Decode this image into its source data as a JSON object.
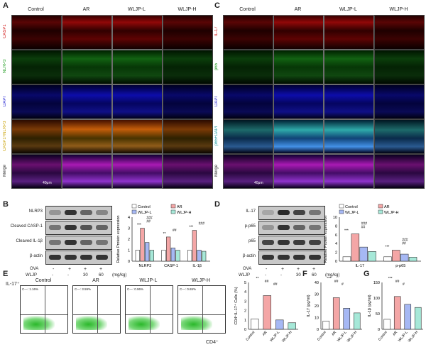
{
  "panels": {
    "A": {
      "label": "A",
      "cols": [
        "Control",
        "AR",
        "WLJP-L",
        "WLJP-H"
      ],
      "rows": [
        "CASP1",
        "NLRP3",
        "DAPI",
        "CASP1+NLRP3",
        "Merge"
      ],
      "scale": "40μm"
    },
    "C": {
      "label": "C",
      "cols": [
        "Control",
        "AR",
        "WLJP-L",
        "WLJP-H"
      ],
      "rows": [
        "IL-17",
        "p65",
        "DAPI",
        "p65+DAPI",
        "Merge"
      ],
      "scale": "40μm"
    },
    "B": {
      "label": "B",
      "blots": [
        "NLRP3",
        "Cleaved CASP-1",
        "Cleaved IL-1β",
        "β-actin"
      ],
      "ova": [
        "-",
        "+",
        "+",
        "+"
      ],
      "wljp": [
        "-",
        "-",
        "30",
        "60"
      ],
      "ova_label": "OVA",
      "wljp_label": "WLJP",
      "unit": "(mg/kg)"
    },
    "D": {
      "label": "D",
      "blots": [
        "IL-17",
        "p-p65",
        "p65",
        "β-actin"
      ],
      "ova": [
        "-",
        "+",
        "+",
        "+"
      ],
      "wljp": [
        "-",
        "-",
        "30",
        "60"
      ],
      "ova_label": "OVA",
      "wljp_label": "WLJP",
      "unit": "(mg/kg)"
    },
    "E": {
      "label": "E",
      "y": "IL-17⁺",
      "x": "CD4⁺",
      "plots": [
        "Control",
        "AR",
        "WLJP-L",
        "WLJP-H"
      ],
      "gates": [
        "C—: 1.16%",
        "C—: 3.59%",
        "C—: 0.96%",
        "C—: 0.65%"
      ]
    },
    "F": {
      "label": "F"
    },
    "G": {
      "label": "G"
    }
  },
  "legend": {
    "items": [
      "Control",
      "AR",
      "WLJP-L",
      "WLJP-H"
    ],
    "colors": [
      "#ffffff",
      "#f4a6a6",
      "#a6b8f4",
      "#a6e8d8"
    ]
  },
  "chart_data": [
    {
      "type": "bar",
      "id": "B",
      "ylabel": "Relative Protein expression",
      "categories": [
        "NLRP3",
        "CASP-1",
        "IL-1β"
      ],
      "ylim": [
        0,
        4
      ],
      "yticks": [
        "0",
        "1",
        "2",
        "3",
        "4"
      ],
      "series": [
        {
          "name": "Control",
          "values": [
            1.0,
            1.0,
            1.0
          ]
        },
        {
          "name": "AR",
          "values": [
            3.0,
            2.2,
            2.8
          ]
        },
        {
          "name": "WLJP-L",
          "values": [
            1.7,
            1.2,
            1.0
          ]
        },
        {
          "name": "WLJP-H",
          "values": [
            1.0,
            1.0,
            0.9
          ]
        }
      ],
      "sig": [
        {
          "text": "***",
          "cat": 0
        },
        {
          "text": "##",
          "cat": 0
        },
        {
          "text": "###",
          "cat": 0
        },
        {
          "text": "**",
          "cat": 1
        },
        {
          "text": "##",
          "cat": 1
        },
        {
          "text": "***",
          "cat": 2
        },
        {
          "text": "###",
          "cat": 2
        }
      ]
    },
    {
      "type": "bar",
      "id": "D",
      "ylabel": "Relative Protein expression",
      "categories": [
        "IL-17",
        "p-p65"
      ],
      "ylim": [
        0,
        10
      ],
      "yticks": [
        "0",
        "2",
        "4",
        "6",
        "8",
        "10"
      ],
      "series": [
        {
          "name": "Control",
          "values": [
            1.0,
            1.0
          ]
        },
        {
          "name": "AR",
          "values": [
            6.2,
            2.5
          ]
        },
        {
          "name": "WLJP-L",
          "values": [
            3.2,
            1.6
          ]
        },
        {
          "name": "WLJP-H",
          "values": [
            2.2,
            0.9
          ]
        }
      ],
      "sig": [
        {
          "text": "***",
          "cat": 0
        },
        {
          "text": "##",
          "cat": 0
        },
        {
          "text": "###",
          "cat": 0
        },
        {
          "text": "***",
          "cat": 1
        },
        {
          "text": "##",
          "cat": 1
        },
        {
          "text": "###",
          "cat": 1
        }
      ]
    },
    {
      "type": "bar",
      "id": "E",
      "ylabel": "CD4⁺IL-17⁺ Cells (%)",
      "categories": [
        "Control",
        "AR",
        "WLJP-L",
        "WLJP-H"
      ],
      "ylim": [
        0,
        5
      ],
      "yticks": [
        "0",
        "1",
        "2",
        "3",
        "4",
        "5"
      ],
      "values": [
        1.1,
        3.6,
        1.0,
        0.7
      ],
      "sig": [
        "**",
        "##",
        "##"
      ]
    },
    {
      "type": "bar",
      "id": "F",
      "ylabel": "IL-17 (pg/ml)",
      "categories": [
        "Control",
        "AR",
        "WLJP-L",
        "WLJP-H"
      ],
      "ylim": [
        0,
        40
      ],
      "yticks": [
        "0",
        "10",
        "20",
        "30",
        "40"
      ],
      "values": [
        7,
        27,
        18,
        14
      ],
      "sig": [
        "***",
        "##",
        "#"
      ]
    },
    {
      "type": "bar",
      "id": "G",
      "ylabel": "IL-1β (pg/ml)",
      "categories": [
        "Control",
        "AR",
        "WLJP-L",
        "WLJP-H"
      ],
      "ylim": [
        0,
        150
      ],
      "yticks": [
        "0",
        "50",
        "100",
        "150"
      ],
      "values": [
        32,
        105,
        80,
        70
      ],
      "sig": [
        "***",
        "##",
        "#"
      ]
    }
  ]
}
